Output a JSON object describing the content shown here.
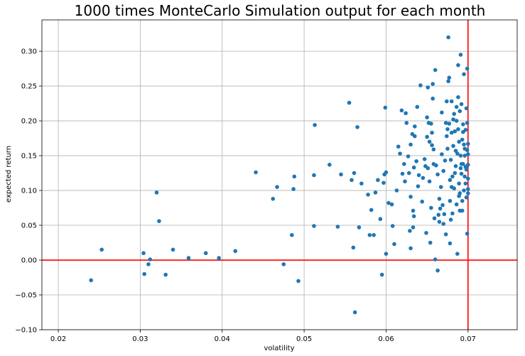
{
  "chart_data": {
    "type": "scatter",
    "title": "1000 times MonteCarlo Simulation output for each month",
    "xlabel": "volatility",
    "ylabel": "expected return",
    "xlim": [
      0.018,
      0.076
    ],
    "ylim": [
      -0.1,
      0.345
    ],
    "xticks": [
      0.02,
      0.03,
      0.04,
      0.05,
      0.06,
      0.07
    ],
    "xtick_labels": [
      "0.02",
      "0.03",
      "0.04",
      "0.05",
      "0.06",
      "0.07"
    ],
    "yticks": [
      -0.1,
      -0.05,
      0.0,
      0.05,
      0.1,
      0.15,
      0.2,
      0.25,
      0.3
    ],
    "ytick_labels": [
      "−0.10",
      "−0.05",
      "0.00",
      "0.05",
      "0.10",
      "0.15",
      "0.20",
      "0.25",
      "0.30"
    ],
    "grid": true,
    "point_color": "#1f77b4",
    "reference_line_color": "#ff0000",
    "reference_lines": {
      "x": 0.07,
      "y": 0.0
    },
    "points": [
      [
        0.024,
        -0.029
      ],
      [
        0.0253,
        0.015
      ],
      [
        0.0304,
        0.01
      ],
      [
        0.0305,
        -0.02
      ],
      [
        0.031,
        -0.006
      ],
      [
        0.0312,
        0.001
      ],
      [
        0.032,
        0.097
      ],
      [
        0.0323,
        0.056
      ],
      [
        0.0331,
        -0.021
      ],
      [
        0.034,
        0.015
      ],
      [
        0.0359,
        0.003
      ],
      [
        0.038,
        0.01
      ],
      [
        0.0396,
        0.003
      ],
      [
        0.0416,
        0.013
      ],
      [
        0.0441,
        0.126
      ],
      [
        0.0462,
        0.088
      ],
      [
        0.0467,
        0.105
      ],
      [
        0.0475,
        -0.006
      ],
      [
        0.0485,
        0.036
      ],
      [
        0.0487,
        0.102
      ],
      [
        0.0488,
        0.12
      ],
      [
        0.0493,
        -0.03
      ],
      [
        0.0512,
        0.122
      ],
      [
        0.0512,
        0.049
      ],
      [
        0.0513,
        0.194
      ],
      [
        0.0531,
        0.137
      ],
      [
        0.0541,
        0.048
      ],
      [
        0.0545,
        0.123
      ],
      [
        0.0555,
        0.226
      ],
      [
        0.0558,
        0.115
      ],
      [
        0.056,
        0.018
      ],
      [
        0.0561,
        0.125
      ],
      [
        0.0562,
        -0.075
      ],
      [
        0.0565,
        0.191
      ],
      [
        0.0567,
        0.047
      ],
      [
        0.057,
        0.11
      ],
      [
        0.0578,
        0.094
      ],
      [
        0.058,
        0.036
      ],
      [
        0.0582,
        0.072
      ],
      [
        0.0585,
        0.036
      ],
      [
        0.0587,
        0.097
      ],
      [
        0.059,
        0.115
      ],
      [
        0.0593,
        0.059
      ],
      [
        0.0595,
        -0.021
      ],
      [
        0.0597,
        0.111
      ],
      [
        0.0598,
        0.123
      ],
      [
        0.0599,
        0.219
      ],
      [
        0.06,
        0.009
      ],
      [
        0.06,
        0.126
      ],
      [
        0.0603,
        0.082
      ],
      [
        0.0607,
        0.08
      ],
      [
        0.0608,
        0.049
      ],
      [
        0.061,
        0.023
      ],
      [
        0.0613,
        0.1
      ],
      [
        0.0615,
        0.163
      ],
      [
        0.0617,
        0.153
      ],
      [
        0.0619,
        0.215
      ],
      [
        0.062,
        0.124
      ],
      [
        0.0622,
        0.138
      ],
      [
        0.0623,
        0.113
      ],
      [
        0.0624,
        0.211
      ],
      [
        0.0625,
        0.197
      ],
      [
        0.0627,
        0.149
      ],
      [
        0.0628,
        0.125
      ],
      [
        0.0629,
        0.042
      ],
      [
        0.063,
        0.091
      ],
      [
        0.063,
        0.166
      ],
      [
        0.063,
        0.017
      ],
      [
        0.0632,
        0.181
      ],
      [
        0.0633,
        0.047
      ],
      [
        0.0633,
        0.071
      ],
      [
        0.0634,
        0.063
      ],
      [
        0.0634,
        0.133
      ],
      [
        0.0635,
        0.178
      ],
      [
        0.0635,
        0.192
      ],
      [
        0.0637,
        0.142
      ],
      [
        0.0638,
        0.22
      ],
      [
        0.0639,
        0.106
      ],
      [
        0.064,
        0.122
      ],
      [
        0.0642,
        0.251
      ],
      [
        0.0644,
        0.084
      ],
      [
        0.0645,
        0.118
      ],
      [
        0.0647,
        0.145
      ],
      [
        0.0648,
        0.135
      ],
      [
        0.0649,
        0.039
      ],
      [
        0.065,
        0.177
      ],
      [
        0.065,
        0.205
      ],
      [
        0.0651,
        0.248
      ],
      [
        0.0651,
        0.132
      ],
      [
        0.0652,
        0.197
      ],
      [
        0.0653,
        0.113
      ],
      [
        0.0653,
        0.17
      ],
      [
        0.0654,
        0.025
      ],
      [
        0.0655,
        0.075
      ],
      [
        0.0655,
        0.196
      ],
      [
        0.0656,
        0.165
      ],
      [
        0.0656,
        0.183
      ],
      [
        0.0657,
        0.232
      ],
      [
        0.0657,
        0.253
      ],
      [
        0.0658,
        0.138
      ],
      [
        0.0658,
        0.159
      ],
      [
        0.0659,
        0.06
      ],
      [
        0.066,
        0.273
      ],
      [
        0.066,
        0.001
      ],
      [
        0.0661,
        0.136
      ],
      [
        0.0663,
        0.123
      ],
      [
        0.0663,
        -0.015
      ],
      [
        0.0664,
        0.065
      ],
      [
        0.0665,
        0.088
      ],
      [
        0.0665,
        0.055
      ],
      [
        0.0666,
        0.074
      ],
      [
        0.0667,
        0.105
      ],
      [
        0.0668,
        0.152
      ],
      [
        0.0668,
        0.212
      ],
      [
        0.0669,
        0.079
      ],
      [
        0.067,
        0.128
      ],
      [
        0.067,
        0.052
      ],
      [
        0.0671,
        0.066
      ],
      [
        0.0672,
        0.143
      ],
      [
        0.0673,
        0.197
      ],
      [
        0.0673,
        0.037
      ],
      [
        0.0674,
        0.228
      ],
      [
        0.0674,
        0.178
      ],
      [
        0.0675,
        0.188
      ],
      [
        0.0675,
        0.16
      ],
      [
        0.0676,
        0.32
      ],
      [
        0.0676,
        0.257
      ],
      [
        0.0677,
        0.262
      ],
      [
        0.0677,
        0.196
      ],
      [
        0.0678,
        0.115
      ],
      [
        0.0678,
        0.085
      ],
      [
        0.0678,
        0.024
      ],
      [
        0.0679,
        0.144
      ],
      [
        0.0679,
        0.058
      ],
      [
        0.068,
        0.228
      ],
      [
        0.068,
        0.183
      ],
      [
        0.068,
        0.105
      ],
      [
        0.0681,
        0.067
      ],
      [
        0.0681,
        0.12
      ],
      [
        0.0682,
        0.202
      ],
      [
        0.0682,
        0.164
      ],
      [
        0.0683,
        0.103
      ],
      [
        0.0683,
        0.21
      ],
      [
        0.0684,
        0.185
      ],
      [
        0.0684,
        0.125
      ],
      [
        0.0685,
        0.157
      ],
      [
        0.0685,
        0.135
      ],
      [
        0.0686,
        0.2
      ],
      [
        0.0686,
        0.22
      ],
      [
        0.0686,
        0.08
      ],
      [
        0.0687,
        0.009
      ],
      [
        0.0687,
        0.153
      ],
      [
        0.0688,
        0.188
      ],
      [
        0.0688,
        0.234
      ],
      [
        0.0688,
        0.28
      ],
      [
        0.0689,
        0.17
      ],
      [
        0.0689,
        0.11
      ],
      [
        0.0689,
        0.092
      ],
      [
        0.069,
        0.071
      ],
      [
        0.069,
        0.096
      ],
      [
        0.069,
        0.214
      ],
      [
        0.0691,
        0.295
      ],
      [
        0.0691,
        0.132
      ],
      [
        0.0691,
        0.15
      ],
      [
        0.0692,
        0.138
      ],
      [
        0.0692,
        0.124
      ],
      [
        0.0692,
        0.224
      ],
      [
        0.0693,
        0.071
      ],
      [
        0.0693,
        0.173
      ],
      [
        0.0693,
        0.085
      ],
      [
        0.0694,
        0.195
      ],
      [
        0.0694,
        0.184
      ],
      [
        0.0694,
        0.138
      ],
      [
        0.0695,
        0.267
      ],
      [
        0.0695,
        0.166
      ],
      [
        0.0695,
        0.1
      ],
      [
        0.0696,
        0.15
      ],
      [
        0.0696,
        0.12
      ],
      [
        0.0696,
        0.16
      ],
      [
        0.0697,
        0.11
      ],
      [
        0.0697,
        0.187
      ],
      [
        0.0697,
        0.134
      ],
      [
        0.0698,
        0.218
      ],
      [
        0.0698,
        0.13
      ],
      [
        0.0698,
        0.09
      ],
      [
        0.0699,
        0.275
      ],
      [
        0.0699,
        0.197
      ],
      [
        0.0699,
        0.158
      ],
      [
        0.0699,
        0.038
      ],
      [
        0.07,
        0.096
      ],
      [
        0.07,
        0.102
      ],
      [
        0.07,
        0.117
      ],
      [
        0.07,
        0.137
      ],
      [
        0.07,
        0.152
      ],
      [
        0.07,
        0.167
      ]
    ]
  }
}
